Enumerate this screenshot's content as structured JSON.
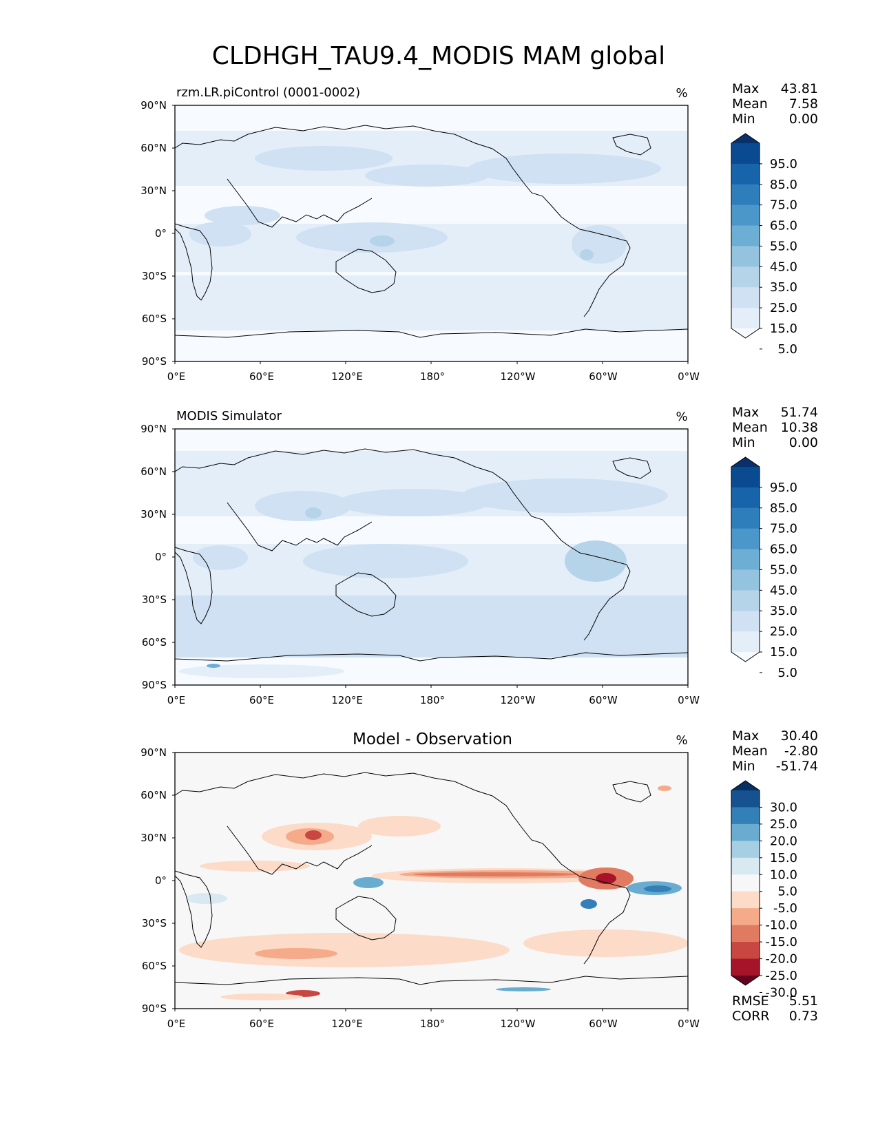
{
  "title": "CLDHGH_TAU9.4_MODIS MAM global",
  "x_ticks": [
    "0°E",
    "60°E",
    "120°E",
    "180°",
    "120°W",
    "60°W",
    "0°W"
  ],
  "y_ticks": [
    "90°N",
    "60°N",
    "30°N",
    "0°",
    "30°S",
    "60°S",
    "90°S"
  ],
  "panels": [
    {
      "id": "model",
      "left_title": "rzm.LR.piControl (0001-0002)",
      "center_title": "",
      "units": "%",
      "stats": [
        {
          "label": "Max",
          "value": "43.81"
        },
        {
          "label": "Mean",
          "value": "7.58"
        },
        {
          "label": "Min",
          "value": "0.00"
        }
      ],
      "colorbar": {
        "labels": [
          "95.0",
          "85.0",
          "75.0",
          "65.0",
          "55.0",
          "45.0",
          "35.0",
          "25.0",
          "15.0",
          "5.0"
        ],
        "colors": [
          "#f7fbff",
          "#e3eef9",
          "#cfe1f2",
          "#b5d4e9",
          "#93c3df",
          "#6daed5",
          "#4b97c9",
          "#2f7ebc",
          "#1864aa",
          "#0a4a90",
          "#08306b"
        ]
      },
      "footer_stats": []
    },
    {
      "id": "obs",
      "left_title": "MODIS Simulator",
      "center_title": "",
      "units": "%",
      "stats": [
        {
          "label": "Max",
          "value": "51.74"
        },
        {
          "label": "Mean",
          "value": "10.38"
        },
        {
          "label": "Min",
          "value": "0.00"
        }
      ],
      "colorbar": {
        "labels": [
          "95.0",
          "85.0",
          "75.0",
          "65.0",
          "55.0",
          "45.0",
          "35.0",
          "25.0",
          "15.0",
          "5.0"
        ],
        "colors": [
          "#f7fbff",
          "#e3eef9",
          "#cfe1f2",
          "#b5d4e9",
          "#93c3df",
          "#6daed5",
          "#4b97c9",
          "#2f7ebc",
          "#1864aa",
          "#0a4a90",
          "#08306b"
        ]
      },
      "footer_stats": []
    },
    {
      "id": "diff",
      "left_title": "",
      "center_title": "Model - Observation",
      "units": "%",
      "stats": [
        {
          "label": "Max",
          "value": "30.40"
        },
        {
          "label": "Mean",
          "value": "-2.80"
        },
        {
          "label": "Min",
          "value": "-51.74"
        }
      ],
      "colorbar": {
        "labels": [
          "30.0",
          "25.0",
          "20.0",
          "15.0",
          "10.0",
          "5.0",
          "-5.0",
          "-10.0",
          "-15.0",
          "-20.0",
          "-25.0",
          "-30.0"
        ],
        "colors": [
          "#67001f",
          "#a51429",
          "#c94741",
          "#e07b62",
          "#f5aa89",
          "#fcdbc8",
          "#f7f7f7",
          "#d8e9f1",
          "#a6cfe3",
          "#6aaccf",
          "#3380b9",
          "#175290",
          "#053061"
        ]
      },
      "footer_stats": [
        {
          "label": "RMSE",
          "value": "5.51"
        },
        {
          "label": "CORR",
          "value": "0.73"
        }
      ]
    }
  ]
}
